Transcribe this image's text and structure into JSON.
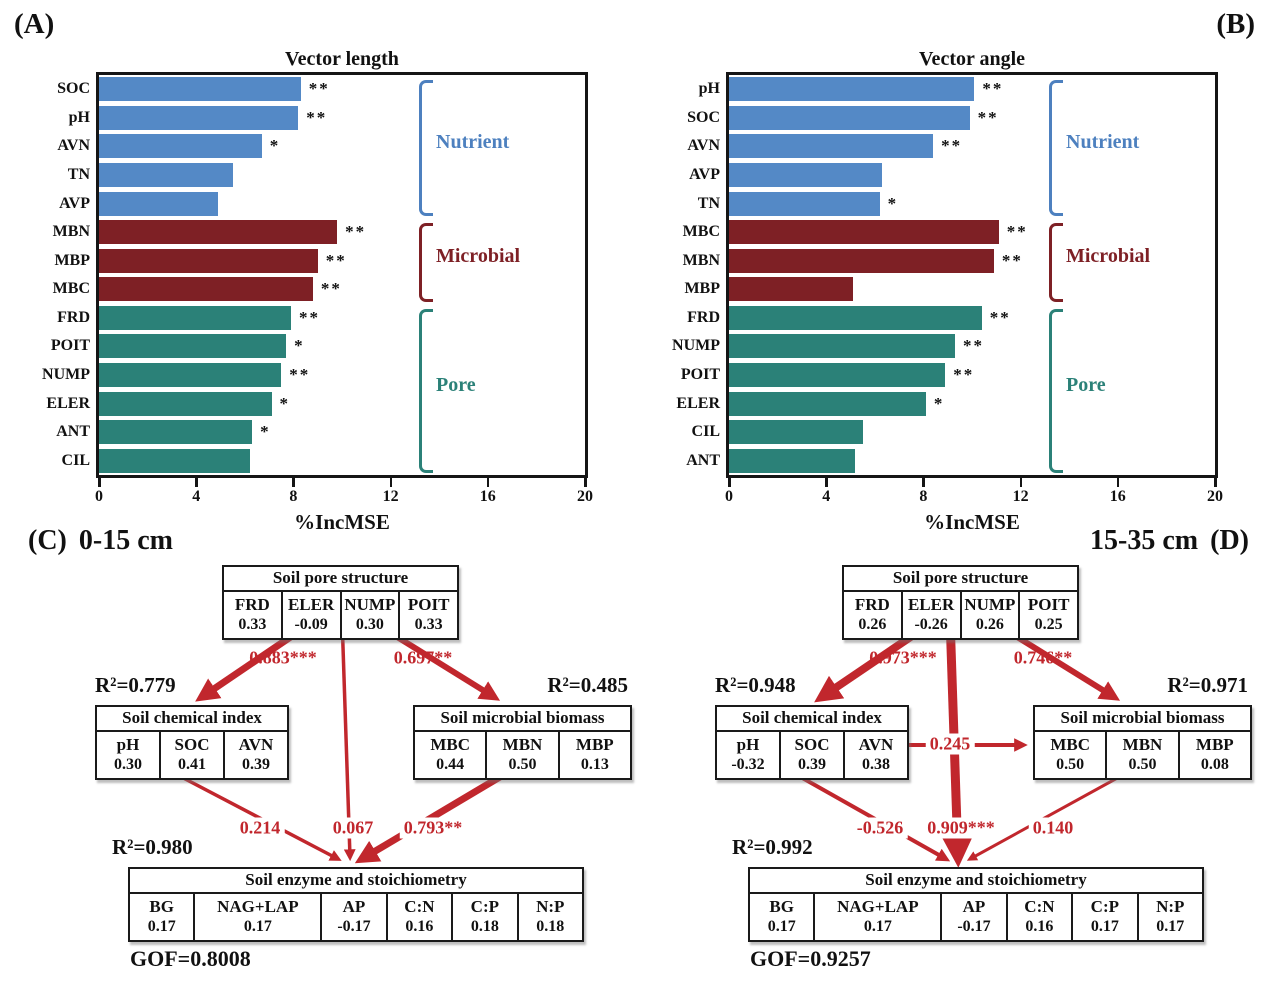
{
  "figure": {
    "corner_labels": {
      "A": "(A)",
      "B": "(B)"
    }
  },
  "colors": {
    "arrow_red": "#c1272d",
    "bar_blue": "#5489c6",
    "bar_darkred": "#7e2025",
    "bar_teal": "#2b8178",
    "accent_blue": "#4d80bf",
    "frame_black": "#151515"
  },
  "chart_data": [
    {
      "type": "bar",
      "panel": "A",
      "corner_label": "(A)",
      "title": "Vector length",
      "orientation": "horizontal",
      "xlabel": "%IncMSE",
      "xlim": [
        0,
        20
      ],
      "xticks": [
        "0",
        "4",
        "8",
        "12",
        "16",
        "20"
      ],
      "categories": [
        "SOC",
        "pH",
        "AVN",
        "TN",
        "AVP",
        "MBN",
        "MBP",
        "MBC",
        "FRD",
        "POIT",
        "NUMP",
        "ELER",
        "ANT",
        "CIL"
      ],
      "values": [
        8.3,
        8.2,
        6.7,
        5.5,
        4.9,
        9.8,
        9.0,
        8.8,
        7.9,
        7.7,
        7.5,
        7.1,
        6.3,
        6.2
      ],
      "significance": [
        "**",
        "**",
        "*",
        "",
        "",
        "**",
        "**",
        "**",
        "**",
        "*",
        "**",
        "*",
        "*",
        ""
      ],
      "groups": [
        {
          "label": "Nutrient",
          "from": 0,
          "to": 4,
          "bar_color": "#5489c6",
          "accent_color": "#4d80bf"
        },
        {
          "label": "Microbial",
          "from": 5,
          "to": 7,
          "bar_color": "#7e2025",
          "accent_color": "#7e2025"
        },
        {
          "label": "Pore",
          "from": 8,
          "to": 13,
          "bar_color": "#2b8178",
          "accent_color": "#2b8178"
        }
      ]
    },
    {
      "type": "bar",
      "panel": "B",
      "corner_label": "(B)",
      "title": "Vector angle",
      "orientation": "horizontal",
      "xlabel": "%IncMSE",
      "xlim": [
        0,
        20
      ],
      "xticks": [
        "0",
        "4",
        "8",
        "12",
        "16",
        "20"
      ],
      "categories": [
        "pH",
        "SOC",
        "AVN",
        "AVP",
        "TN",
        "MBC",
        "MBN",
        "MBP",
        "FRD",
        "NUMP",
        "POIT",
        "ELER",
        "CIL",
        "ANT"
      ],
      "values": [
        10.1,
        9.9,
        8.4,
        6.3,
        6.2,
        11.1,
        10.9,
        5.1,
        10.4,
        9.3,
        8.9,
        8.1,
        5.5,
        5.2
      ],
      "significance": [
        "**",
        "**",
        "**",
        "",
        "*",
        "**",
        "**",
        "",
        "**",
        "**",
        "**",
        "*",
        "",
        ""
      ],
      "groups": [
        {
          "label": "Nutrient",
          "from": 0,
          "to": 4,
          "bar_color": "#5489c6",
          "accent_color": "#4d80bf"
        },
        {
          "label": "Microbial",
          "from": 5,
          "to": 7,
          "bar_color": "#7e2025",
          "accent_color": "#7e2025"
        },
        {
          "label": "Pore",
          "from": 8,
          "to": 13,
          "bar_color": "#2b8178",
          "accent_color": "#2b8178"
        }
      ]
    }
  ],
  "sem_diagrams": [
    {
      "panel": "C",
      "heading_label": "(C)",
      "heading": "0-15 cm",
      "heading_side": "left",
      "gof": "GOF=0.8008",
      "vertical_x": 328,
      "boxes": {
        "pore": {
          "title": "Soil pore structure",
          "r2": null,
          "cells": [
            {
              "name": "FRD",
              "value": "0.33"
            },
            {
              "name": "ELER",
              "value": "-0.09"
            },
            {
              "name": "NUMP",
              "value": "0.30"
            },
            {
              "name": "POIT",
              "value": "0.33"
            }
          ]
        },
        "chem": {
          "title": "Soil chemical index",
          "r2": "R²=0.779",
          "cells": [
            {
              "name": "pH",
              "value": "0.30"
            },
            {
              "name": "SOC",
              "value": "0.41"
            },
            {
              "name": "AVN",
              "value": "0.39"
            }
          ]
        },
        "micro": {
          "title": "Soil microbial biomass",
          "r2": "R²=0.485",
          "cells": [
            {
              "name": "MBC",
              "value": "0.44"
            },
            {
              "name": "MBN",
              "value": "0.50"
            },
            {
              "name": "MBP",
              "value": "0.13"
            }
          ]
        },
        "enzyme": {
          "title": "Soil enzyme and stoichiometry",
          "r2": "R²=0.980",
          "cells": [
            {
              "name": "BG",
              "value": "0.17"
            },
            {
              "name": "NAG+LAP",
              "value": "0.17"
            },
            {
              "name": "AP",
              "value": "-0.17"
            },
            {
              "name": "C:N",
              "value": "0.16"
            },
            {
              "name": "C:P",
              "value": "0.18"
            },
            {
              "name": "N:P",
              "value": "0.18"
            }
          ]
        }
      },
      "paths": [
        {
          "from": "pore",
          "to": "chem",
          "label": "0.883***",
          "weight": 7
        },
        {
          "from": "pore",
          "to": "micro",
          "label": "0.697**",
          "weight": 6
        },
        {
          "from": "chem",
          "to": "enzyme",
          "label": "0.214",
          "weight": 3.5
        },
        {
          "from": "pore",
          "to": "enzyme",
          "label": "0.067",
          "weight": 3.5
        },
        {
          "from": "micro",
          "to": "enzyme",
          "label": "0.793**",
          "weight": 7
        }
      ]
    },
    {
      "panel": "D",
      "heading_label": "(D)",
      "heading": "15-35 cm",
      "heading_side": "right",
      "gof": "GOF=0.9257",
      "vertical_x": 316,
      "boxes": {
        "pore": {
          "title": "Soil pore structure",
          "r2": null,
          "cells": [
            {
              "name": "FRD",
              "value": "0.26"
            },
            {
              "name": "ELER",
              "value": "-0.26"
            },
            {
              "name": "NUMP",
              "value": "0.26"
            },
            {
              "name": "POIT",
              "value": "0.25"
            }
          ]
        },
        "chem": {
          "title": "Soil chemical index",
          "r2": "R²=0.948",
          "cells": [
            {
              "name": "pH",
              "value": "-0.32"
            },
            {
              "name": "SOC",
              "value": "0.39"
            },
            {
              "name": "AVN",
              "value": "0.38"
            }
          ]
        },
        "micro": {
          "title": "Soil microbial biomass",
          "r2": "R²=0.971",
          "cells": [
            {
              "name": "MBC",
              "value": "0.50"
            },
            {
              "name": "MBN",
              "value": "0.50"
            },
            {
              "name": "MBP",
              "value": "0.08"
            }
          ]
        },
        "enzyme": {
          "title": "Soil enzyme and stoichiometry",
          "r2": "R²=0.992",
          "cells": [
            {
              "name": "BG",
              "value": "0.17"
            },
            {
              "name": "NAG+LAP",
              "value": "0.17"
            },
            {
              "name": "AP",
              "value": "-0.17"
            },
            {
              "name": "C:N",
              "value": "0.16"
            },
            {
              "name": "C:P",
              "value": "0.17"
            },
            {
              "name": "N:P",
              "value": "0.17"
            }
          ]
        }
      },
      "paths": [
        {
          "from": "pore",
          "to": "chem",
          "label": "0.973***",
          "weight": 8
        },
        {
          "from": "pore",
          "to": "micro",
          "label": "0.746**",
          "weight": 6
        },
        {
          "from": "chem",
          "to": "micro",
          "label": "0.245",
          "weight": 4
        },
        {
          "from": "chem",
          "to": "enzyme",
          "label": "-0.526",
          "weight": 4
        },
        {
          "from": "pore",
          "to": "enzyme",
          "label": "0.909***",
          "weight": 9
        },
        {
          "from": "micro",
          "to": "enzyme",
          "label": "0.140",
          "weight": 3
        }
      ]
    }
  ]
}
